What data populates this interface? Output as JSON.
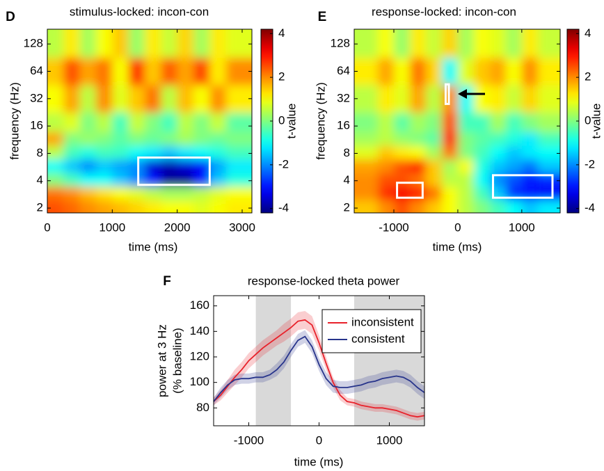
{
  "chart_data": [
    {
      "type": "heatmap",
      "panel": "D",
      "title": "stimulus-locked: incon-con",
      "xlabel": "time (ms)",
      "ylabel": "frequency (Hz)",
      "colorbar_label": "t-value",
      "x": [
        125,
        375,
        625,
        875,
        1125,
        1375,
        1625,
        1875,
        2125,
        2375,
        2625,
        2875
      ],
      "y": [
        2,
        3,
        4,
        6,
        8,
        12,
        16,
        32,
        64,
        128
      ],
      "values": [
        [
          2.5,
          2.3,
          2,
          1.8,
          1.6,
          1.4,
          1.2,
          1,
          1,
          0.8,
          1,
          1.2
        ],
        [
          2.2,
          2,
          1.6,
          1.3,
          1,
          0.8,
          0.5,
          0.3,
          0.3,
          0.5,
          0.8,
          1
        ],
        [
          0,
          -0.5,
          -1,
          -1,
          -1.5,
          -2,
          -3,
          -4,
          -4,
          -3,
          -1.5,
          -0.8
        ],
        [
          -1,
          -1.5,
          -2,
          -1.5,
          -1.8,
          -2,
          -3.5,
          -3.8,
          -3.5,
          -3.2,
          -1.8,
          -1.2
        ],
        [
          0.5,
          -0.5,
          -0.8,
          -0.5,
          -0.6,
          -1,
          -1.2,
          -1.5,
          -1.2,
          -1,
          -0.8,
          -0.5
        ],
        [
          1.8,
          0,
          0.2,
          0,
          -0.3,
          0,
          -0.2,
          0,
          0.3,
          0,
          -0.2,
          0
        ],
        [
          0.5,
          0.8,
          0,
          0.5,
          -0.5,
          0.6,
          0,
          -0.5,
          0.5,
          0,
          0.6,
          -0.3
        ],
        [
          1,
          1.8,
          0.5,
          2,
          0.8,
          1.5,
          2.2,
          0.5,
          1.6,
          1,
          2,
          1.2
        ],
        [
          1.5,
          2.5,
          1.8,
          2.2,
          1,
          2.8,
          1.5,
          2.4,
          1.8,
          2.6,
          1.2,
          2
        ],
        [
          0.5,
          1.2,
          0.3,
          1,
          1.5,
          0.2,
          1.2,
          0.6,
          1.4,
          0.3,
          1.2,
          0.8
        ]
      ],
      "clusters": [
        {
          "x": [
            1400,
            2500
          ],
          "y": [
            3.6,
            7.2
          ]
        }
      ],
      "xlim": [
        0,
        3150
      ],
      "xticks": [
        0,
        1000,
        2000,
        3000
      ],
      "ylim": [
        1.77,
        186
      ],
      "yticks": [
        2,
        4,
        8,
        16,
        32,
        64,
        128
      ],
      "log_y": true,
      "clim": [
        -4.2,
        4.2
      ],
      "cticks": [
        -4,
        -2,
        0,
        2,
        4
      ],
      "colormap": "jet"
    },
    {
      "type": "heatmap",
      "panel": "E",
      "title": "response-locked: incon-con",
      "xlabel": "time (ms)",
      "ylabel": "frequency (Hz)",
      "colorbar_label": "t-value",
      "x": [
        -1375,
        -1125,
        -875,
        -625,
        -375,
        -125,
        125,
        375,
        625,
        875,
        1125,
        1375
      ],
      "y": [
        2,
        3,
        4,
        6,
        8,
        12,
        16,
        32,
        64,
        128
      ],
      "values": [
        [
          1.5,
          2,
          2.5,
          2,
          1.5,
          1,
          0.5,
          0,
          -0.5,
          -1,
          -1.5,
          -1.2
        ],
        [
          2,
          2.8,
          3.2,
          3,
          2.2,
          1,
          0.5,
          -0.5,
          -1.5,
          -2.8,
          -3,
          -3.2
        ],
        [
          2,
          2.5,
          2.5,
          2.2,
          1.5,
          0.5,
          0.5,
          -1,
          -2,
          -2.5,
          -3,
          -2.8
        ],
        [
          1.8,
          2,
          2.5,
          3,
          1.5,
          0.3,
          1,
          -0.8,
          -1.5,
          -1.8,
          -2.2,
          -1.5
        ],
        [
          0.8,
          1.5,
          1.2,
          1,
          0.3,
          2.2,
          0,
          -0.5,
          -1,
          -1.5,
          -1.2,
          -1
        ],
        [
          0.3,
          0.5,
          0.2,
          0,
          -0.3,
          3,
          0,
          -0.3,
          -0.5,
          -0.8,
          -1.2,
          -0.5
        ],
        [
          0,
          0.5,
          -0.3,
          0.3,
          0,
          2.5,
          -0.5,
          -0.5,
          0.3,
          -0.5,
          0,
          0.3
        ],
        [
          0.5,
          1.2,
          0.8,
          1.8,
          0.5,
          2,
          -1,
          1,
          1.2,
          0.6,
          1.4,
          0.8
        ],
        [
          1.2,
          1.8,
          1,
          2.2,
          1.4,
          -1,
          0.8,
          1.5,
          1.8,
          1,
          2,
          1.2
        ],
        [
          0.5,
          1,
          0.2,
          1.2,
          0.6,
          1.4,
          0.3,
          1,
          0.8,
          0.3,
          1.2,
          0.6
        ]
      ],
      "clusters": [
        {
          "x": [
            -950,
            -550
          ],
          "y": [
            2.6,
            3.8
          ]
        },
        {
          "x": [
            550,
            1480
          ],
          "y": [
            2.6,
            4.6
          ]
        },
        {
          "x": [
            -190,
            -140
          ],
          "y": [
            28,
            46
          ]
        }
      ],
      "xlim": [
        -1620,
        1600
      ],
      "xticks": [
        -1000,
        0,
        1000
      ],
      "ylim": [
        1.77,
        186
      ],
      "yticks": [
        2,
        4,
        8,
        16,
        32,
        64,
        128
      ],
      "log_y": true,
      "clim": [
        -4.2,
        4.2
      ],
      "cticks": [
        -4,
        -2,
        0,
        2,
        4
      ],
      "colormap": "jet"
    },
    {
      "type": "line",
      "panel": "F",
      "title": "response-locked theta power",
      "xlabel": "time (ms)",
      "ylabel": [
        "power at 3 Hz",
        "(% baseline)"
      ],
      "x": [
        -1500,
        -1400,
        -1300,
        -1200,
        -1100,
        -1000,
        -900,
        -800,
        -700,
        -600,
        -500,
        -400,
        -300,
        -200,
        -100,
        0,
        100,
        200,
        300,
        400,
        500,
        600,
        700,
        800,
        900,
        1000,
        1100,
        1200,
        1300,
        1400,
        1500
      ],
      "series": [
        {
          "name": "inconsistent",
          "color": "#e8212a",
          "values": [
            85,
            90,
            97,
            104,
            110,
            117,
            122,
            127,
            131,
            135,
            139,
            143,
            148,
            149,
            145,
            131,
            115,
            100,
            90,
            85,
            84,
            82,
            81,
            80,
            80,
            79,
            78,
            76,
            74,
            73,
            74
          ],
          "error": [
            3,
            4,
            5,
            6,
            6,
            6,
            6,
            6,
            6,
            6,
            7,
            7,
            7,
            7,
            7,
            6,
            5,
            4,
            4,
            3,
            3,
            3,
            3,
            3,
            3,
            3,
            3,
            3,
            3,
            3,
            3
          ]
        },
        {
          "name": "consistent",
          "color": "#27348b",
          "values": [
            85,
            92,
            98,
            102,
            103,
            103,
            104,
            104,
            106,
            110,
            116,
            125,
            133,
            136,
            128,
            114,
            103,
            97,
            96,
            96,
            97,
            98,
            100,
            101,
            103,
            104,
            105,
            104,
            101,
            96,
            92
          ],
          "error": [
            3,
            4,
            4,
            4,
            4,
            4,
            4,
            4,
            4,
            5,
            5,
            5,
            5,
            5,
            5,
            5,
            5,
            5,
            5,
            5,
            5,
            5,
            5,
            5,
            5,
            5,
            5,
            5,
            5,
            5,
            5
          ]
        }
      ],
      "shaded": [
        [
          -900,
          -400
        ],
        [
          500,
          1500
        ]
      ],
      "shade_color": "#d9d9d9",
      "xlim": [
        -1500,
        1500
      ],
      "xticks": [
        -1000,
        0,
        1000
      ],
      "ylim": [
        66,
        168
      ],
      "yticks": [
        80,
        100,
        120,
        140,
        160
      ],
      "legend": "upper right"
    }
  ]
}
